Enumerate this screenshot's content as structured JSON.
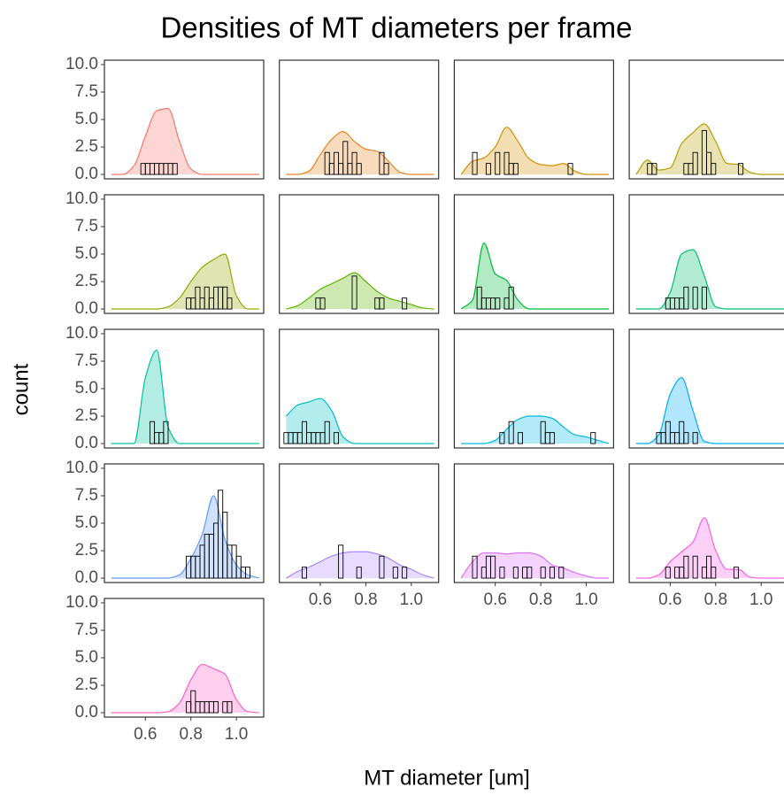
{
  "chart_data": {
    "type": "faceted-histogram-density",
    "title": "Densities of MT diameters per frame",
    "x_label": "MT diameter [um]",
    "y_label": "count",
    "xlim": [
      0.42,
      1.12
    ],
    "xticks": [
      0.6,
      0.8,
      {
        "value": 1.0,
        "label": "1.0"
      }
    ],
    "ylim": [
      -0.4,
      10.4
    ],
    "yticks": [
      {
        "value": 0,
        "label": "0.0"
      },
      {
        "value": 2.5,
        "label": "2.5"
      },
      {
        "value": 5,
        "label": "5.0"
      },
      {
        "value": 7.5,
        "label": "7.5"
      },
      {
        "value": 10,
        "label": "10.0"
      }
    ],
    "columns": 4,
    "bins": [
      0.44,
      0.46,
      0.48,
      0.5,
      0.52,
      0.54,
      0.56,
      0.58,
      0.6,
      0.62,
      0.64,
      0.66,
      0.68,
      0.7,
      0.72,
      0.74,
      0.76,
      0.78,
      0.8,
      0.82,
      0.84,
      0.86,
      0.88,
      0.9,
      0.92,
      0.94,
      0.96,
      0.98,
      1.0,
      1.02,
      1.04,
      1.06,
      1.08,
      1.1
    ],
    "density_x": [
      0.45,
      0.5,
      0.55,
      0.6,
      0.65,
      0.7,
      0.75,
      0.8,
      0.85,
      0.9,
      0.95,
      1.0,
      1.05,
      1.1
    ],
    "panels": [
      {
        "color": "#F8766D",
        "counts": [
          0,
          0,
          0,
          0,
          0,
          0,
          0,
          1,
          1,
          1,
          1,
          1,
          1,
          1,
          1,
          0,
          0,
          0,
          0,
          0,
          0,
          0,
          0,
          0,
          0,
          0,
          0,
          0,
          0,
          0,
          0,
          0,
          0
        ],
        "density": [
          0,
          0,
          0.8,
          3.5,
          5.8,
          6.0,
          3.0,
          0.5,
          0,
          0,
          0,
          0,
          0,
          0
        ]
      },
      {
        "color": "#E88526",
        "counts": [
          0,
          0,
          0,
          0,
          0,
          0,
          0,
          0,
          0,
          2,
          1,
          2,
          1,
          3,
          1,
          2,
          1,
          0,
          0,
          0,
          0,
          2,
          1,
          0,
          0,
          0,
          0,
          0,
          0,
          0,
          0,
          0,
          0
        ],
        "density": [
          0,
          0,
          0.3,
          1.8,
          3.2,
          3.9,
          3.0,
          2.3,
          2.1,
          1.2,
          0.2,
          0,
          0,
          0
        ]
      },
      {
        "color": "#D39200",
        "counts": [
          0,
          0,
          0,
          2,
          0,
          0,
          1,
          0,
          2,
          0,
          2,
          1,
          1,
          0,
          0,
          0,
          0,
          0,
          0,
          0,
          0,
          0,
          0,
          0,
          1,
          0,
          0,
          0,
          0,
          0,
          0,
          0,
          0
        ],
        "density": [
          0,
          1.2,
          1.5,
          2.5,
          4.3,
          3.0,
          1.4,
          0.9,
          0.8,
          1.0,
          0.3,
          0,
          0,
          0
        ]
      },
      {
        "color": "#B79F00",
        "counts": [
          0,
          0,
          0,
          1,
          1,
          0,
          0,
          0,
          0,
          0,
          0,
          1,
          1,
          2,
          0,
          4,
          2,
          1,
          0,
          0,
          0,
          0,
          0,
          1,
          0,
          0,
          0,
          0,
          0,
          0,
          0,
          0,
          0
        ],
        "density": [
          0,
          1.3,
          0.4,
          0.6,
          2.8,
          3.8,
          4.6,
          3.0,
          1.0,
          0.9,
          0.2,
          0,
          0,
          0
        ]
      },
      {
        "color": "#93AA00",
        "counts": [
          0,
          0,
          0,
          0,
          0,
          0,
          0,
          0,
          0,
          0,
          0,
          0,
          0,
          0,
          0,
          0,
          0,
          1,
          1,
          2,
          1,
          2,
          1,
          2,
          2,
          2,
          1,
          0,
          0,
          0,
          0,
          0,
          0
        ],
        "density": [
          0,
          0,
          0,
          0,
          0,
          0.2,
          1.0,
          2.5,
          3.8,
          4.5,
          5.0,
          1.2,
          0,
          0
        ]
      },
      {
        "color": "#5EB300",
        "counts": [
          0,
          0,
          0,
          0,
          0,
          0,
          0,
          1,
          1,
          0,
          0,
          0,
          0,
          0,
          0,
          3,
          0,
          0,
          0,
          0,
          1,
          1,
          0,
          0,
          0,
          0,
          1,
          0,
          0,
          0,
          0,
          0,
          0
        ],
        "density": [
          0,
          0.3,
          1.0,
          1.8,
          2.3,
          2.8,
          3.3,
          2.5,
          1.6,
          1.0,
          0.7,
          0.4,
          0.1,
          0
        ]
      },
      {
        "color": "#00BA38",
        "counts": [
          0,
          0,
          0,
          0,
          2,
          1,
          1,
          1,
          1,
          0,
          1,
          2,
          0,
          0,
          0,
          0,
          0,
          0,
          0,
          0,
          0,
          0,
          0,
          0,
          0,
          0,
          0,
          0,
          0,
          0,
          0,
          0,
          0
        ],
        "density": [
          0,
          0.8,
          6.0,
          3.2,
          2.6,
          0.8,
          0,
          0,
          0,
          0,
          0,
          0,
          0,
          0
        ]
      },
      {
        "color": "#00BF74",
        "counts": [
          0,
          0,
          0,
          0,
          0,
          0,
          0,
          1,
          1,
          1,
          1,
          2,
          0,
          2,
          0,
          2,
          0,
          0,
          0,
          0,
          0,
          0,
          0,
          0,
          0,
          0,
          0,
          0,
          0,
          0,
          0,
          0,
          0
        ],
        "density": [
          0,
          0,
          0,
          1.5,
          5.0,
          5.4,
          3.0,
          0.2,
          0,
          0,
          0,
          0,
          0,
          0
        ]
      },
      {
        "color": "#00C19F",
        "counts": [
          0,
          0,
          0,
          0,
          0,
          0,
          0,
          0,
          0,
          2,
          1,
          1,
          2,
          0,
          0,
          0,
          0,
          0,
          0,
          0,
          0,
          0,
          0,
          0,
          0,
          0,
          0,
          0,
          0,
          0,
          0,
          0,
          0
        ],
        "density": [
          0,
          0,
          0,
          6.0,
          8.5,
          1.5,
          0,
          0,
          0,
          0,
          0,
          0,
          0,
          0
        ]
      },
      {
        "color": "#00BFC4",
        "counts": [
          1,
          1,
          1,
          1,
          2,
          1,
          1,
          1,
          1,
          2,
          0,
          1,
          0,
          0,
          0,
          0,
          0,
          0,
          0,
          0,
          0,
          0,
          0,
          0,
          0,
          0,
          0,
          0,
          0,
          0,
          0,
          0,
          0
        ],
        "density": [
          2.5,
          3.5,
          3.8,
          4.1,
          3.0,
          0.6,
          0,
          0,
          0,
          0,
          0,
          0,
          0,
          0
        ]
      },
      {
        "color": "#00B9E3",
        "counts": [
          0,
          0,
          0,
          0,
          0,
          0,
          0,
          0,
          0,
          1,
          0,
          2,
          0,
          1,
          0,
          0,
          0,
          0,
          2,
          1,
          1,
          0,
          0,
          0,
          0,
          0,
          0,
          0,
          0,
          1,
          0,
          0,
          0
        ],
        "density": [
          0,
          0,
          0,
          0.3,
          1.3,
          2.2,
          2.5,
          2.5,
          2.3,
          1.5,
          0.8,
          0.6,
          0.3,
          0
        ]
      },
      {
        "color": "#00ADFA",
        "counts": [
          0,
          0,
          0,
          0,
          0,
          1,
          1,
          2,
          1,
          1,
          2,
          1,
          0,
          1,
          0,
          0,
          0,
          0,
          0,
          0,
          0,
          0,
          0,
          0,
          0,
          0,
          0,
          0,
          0,
          0,
          0,
          0,
          0
        ],
        "density": [
          0,
          0,
          0.8,
          4.5,
          6.0,
          3.0,
          0.2,
          0,
          0,
          0,
          0,
          0,
          0,
          0
        ]
      },
      {
        "color": "#619CFF",
        "counts": [
          0,
          0,
          0,
          0,
          0,
          0,
          0,
          0,
          0,
          0,
          0,
          0,
          0,
          0,
          0,
          0,
          0,
          2,
          2,
          2,
          3,
          4,
          4,
          5,
          8,
          6,
          3,
          3,
          2,
          1,
          1,
          0,
          0
        ],
        "density": [
          0,
          0,
          0,
          0,
          0,
          0,
          0.3,
          1.8,
          4.0,
          7.5,
          3.5,
          1.2,
          0.3,
          0
        ]
      },
      {
        "color": "#AE87FF",
        "counts": [
          0,
          0,
          0,
          0,
          1,
          0,
          0,
          0,
          0,
          0,
          0,
          0,
          3,
          0,
          0,
          0,
          1,
          0,
          0,
          0,
          0,
          2,
          0,
          0,
          1,
          0,
          1,
          0,
          0,
          0,
          0,
          0,
          0
        ],
        "density": [
          0,
          0.6,
          1.0,
          1.5,
          2.0,
          2.3,
          2.4,
          2.4,
          2.2,
          1.8,
          1.2,
          0.8,
          0.3,
          0
        ]
      },
      {
        "color": "#DB72FB",
        "counts": [
          0,
          0,
          0,
          2,
          0,
          1,
          2,
          2,
          0,
          1,
          0,
          0,
          1,
          0,
          1,
          1,
          0,
          0,
          1,
          0,
          1,
          0,
          1,
          0,
          0,
          0,
          0,
          0,
          0,
          0,
          0,
          0,
          0
        ],
        "density": [
          0,
          1.5,
          2.3,
          2.3,
          2.2,
          2.3,
          2.3,
          2.0,
          1.2,
          0.9,
          0.5,
          0.2,
          0,
          0
        ]
      },
      {
        "color": "#F564E3",
        "counts": [
          0,
          0,
          0,
          0,
          0,
          0,
          0,
          1,
          0,
          1,
          1,
          2,
          0,
          2,
          0,
          1,
          2,
          1,
          0,
          0,
          0,
          0,
          1,
          0,
          0,
          0,
          0,
          0,
          0,
          0,
          0,
          0,
          0
        ],
        "density": [
          0,
          0,
          0.3,
          1.5,
          2.4,
          3.3,
          5.5,
          2.5,
          0.8,
          0.8,
          0.1,
          0,
          0,
          0
        ]
      },
      {
        "color": "#FF61C3",
        "counts": [
          0,
          0,
          0,
          0,
          0,
          0,
          0,
          0,
          0,
          0,
          0,
          0,
          0,
          0,
          0,
          0,
          0,
          1,
          2,
          1,
          1,
          1,
          1,
          1,
          0,
          1,
          1,
          0,
          0,
          0,
          0,
          0,
          0
        ],
        "density": [
          0,
          0,
          0,
          0,
          0,
          0.1,
          0.9,
          3.0,
          4.4,
          4.0,
          3.5,
          1.2,
          0.1,
          0
        ]
      }
    ]
  }
}
